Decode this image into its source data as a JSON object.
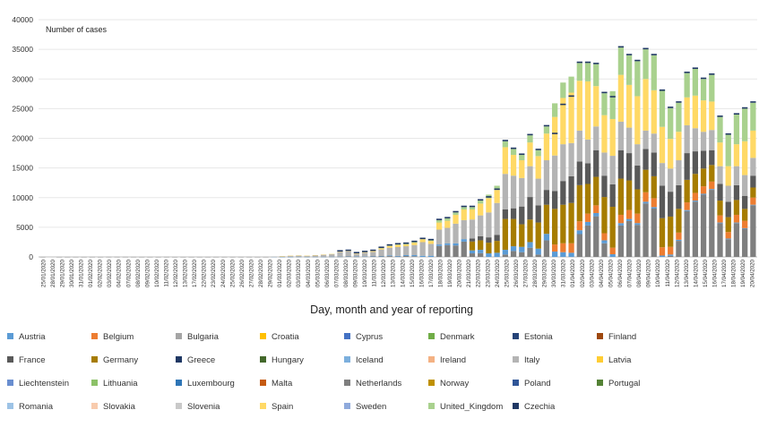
{
  "chart_data": {
    "type": "bar",
    "stacked": true,
    "ylabel": "Number of cases",
    "xlabel": "Day, month and year of reporting",
    "ylim": [
      0,
      40000
    ],
    "yticks": [
      0,
      5000,
      10000,
      15000,
      20000,
      25000,
      30000,
      35000,
      40000
    ],
    "legend_position": "bottom",
    "categories": [
      "25/01/2020",
      "26/01/2020",
      "27/01/2020",
      "28/01/2020",
      "29/01/2020",
      "30/01/2020",
      "31/01/2020",
      "01/02/2020",
      "02/02/2020",
      "03/02/2020",
      "04/02/2020",
      "05/02/2020",
      "06/02/2020",
      "07/02/2020",
      "08/02/2020",
      "09/02/2020",
      "10/02/2020",
      "11/02/2020",
      "12/02/2020",
      "13/02/2020",
      "14/02/2020",
      "15/02/2020",
      "16/02/2020",
      "17/02/2020",
      "18/02/2020",
      "19/02/2020",
      "20/02/2020",
      "21/02/2020",
      "22/02/2020",
      "23/02/2020",
      "24/02/2020",
      "25/02/2020",
      "26/02/2020",
      "27/02/2020",
      "28/02/2020",
      "29/02/2020",
      "01/03/2020",
      "02/03/2020",
      "03/03/2020",
      "04/03/2020",
      "05/03/2020",
      "06/03/2020",
      "07/03/2020",
      "08/03/2020",
      "09/03/2020",
      "10/03/2020",
      "11/03/2020",
      "12/03/2020",
      "13/03/2020",
      "14/03/2020",
      "15/03/2020",
      "16/03/2020",
      "17/03/2020",
      "18/03/2020",
      "19/03/2020",
      "20/03/2020",
      "21/03/2020",
      "22/03/2020",
      "23/03/2020",
      "24/03/2020",
      "25/03/2020",
      "26/03/2020",
      "27/03/2020",
      "28/03/2020",
      "29/03/2020",
      "30/03/2020",
      "31/03/2020",
      "01/04/2020",
      "02/04/2020",
      "03/04/2020",
      "04/04/2020",
      "05/04/2020",
      "06/04/2020",
      "07/04/2020",
      "08/04/2020",
      "09/04/2020",
      "10/04/2020",
      "11/04/2020",
      "12/04/2020",
      "13/04/2020",
      "14/04/2020",
      "15/04/2020",
      "16/04/2020",
      "17/04/2020",
      "18/04/2020",
      "19/04/2020",
      "20/04/2020"
    ],
    "tick_labels": [
      "25/01/2020",
      "28/01/2020",
      "29/01/2020",
      "30/01/2020",
      "31/01/2020",
      "01/02/2020",
      "02/02/2020",
      "03/02/2020",
      "04/02/2020",
      "07/02/2020",
      "08/02/2020",
      "09/02/2020",
      "10/02/2020",
      "11/02/2020",
      "12/02/2020",
      "13/02/2020",
      "17/02/2020",
      "22/02/2020",
      "23/02/2020",
      "24/02/2020",
      "25/02/2020",
      "26/02/2020",
      "27/02/2020",
      "28/02/2020",
      "29/02/2020",
      "01/03/2020",
      "02/03/2020",
      "03/03/2020",
      "04/03/2020",
      "05/03/2020",
      "06/03/2020",
      "07/03/2020",
      "08/03/2020",
      "09/03/2020",
      "10/03/2020",
      "11/03/2020",
      "12/03/2020",
      "13/03/2020",
      "14/03/2020",
      "15/03/2020",
      "16/03/2020",
      "17/03/2020",
      "18/03/2020",
      "19/03/2020",
      "20/03/2020",
      "21/03/2020",
      "22/03/2020",
      "23/03/2020",
      "24/03/2020",
      "25/03/2020",
      "26/03/2020",
      "27/03/2020",
      "28/03/2020",
      "29/03/2020",
      "30/03/2020",
      "31/03/2020",
      "01/04/2020",
      "02/04/2020",
      "03/04/2020",
      "04/04/2020",
      "05/04/2020",
      "06/04/2020",
      "07/04/2020",
      "08/04/2020",
      "09/04/2020",
      "10/04/2020",
      "11/04/2020",
      "12/04/2020",
      "13/04/2020",
      "14/04/2020",
      "15/04/2020",
      "16/04/2020",
      "17/04/2020",
      "18/04/2020",
      "19/04/2020",
      "20/04/2020"
    ],
    "totals": [
      5,
      0,
      4,
      1,
      4,
      2,
      6,
      4,
      10,
      12,
      8,
      5,
      2,
      4,
      4,
      8,
      3,
      2,
      3,
      3,
      2,
      5,
      6,
      7,
      6,
      8,
      4,
      2,
      20,
      120,
      200,
      250,
      200,
      300,
      400,
      500,
      900,
      1000,
      600,
      800,
      1000,
      1500,
      1900,
      2100,
      2200,
      2500,
      3000,
      2800,
      6200,
      6500,
      7500,
      8400,
      8400,
      9500,
      10000,
      11300,
      19500,
      18200,
      17200,
      20500,
      18000,
      22000,
      20700,
      25600,
      27000,
      32700,
      32700,
      32500,
      27600,
      26900,
      35300,
      34000,
      33000,
      35000,
      34000,
      28000,
      25100,
      26000,
      31000,
      31700,
      30000,
      30700,
      23600,
      20600,
      24000,
      25000,
      26000,
      24200,
      23800,
      21000
    ],
    "series": [
      {
        "name": "Austria",
        "color": "#5b9bd5",
        "values": [
          0,
          0,
          0,
          0,
          0,
          0,
          0,
          0,
          0,
          0,
          0,
          0,
          0,
          0,
          0,
          0,
          0,
          0,
          0,
          0,
          0,
          0,
          0,
          0,
          0,
          0,
          0,
          0,
          2,
          5,
          8,
          10,
          8,
          12,
          15,
          20,
          30,
          45,
          50,
          55,
          60,
          75,
          110,
          120,
          150,
          180,
          190,
          200,
          250,
          300,
          370,
          420,
          500,
          550,
          600,
          700,
          800,
          800,
          900,
          950,
          1000,
          1100,
          900,
          800,
          700,
          650,
          600,
          550,
          500,
          450,
          400,
          350,
          300,
          280,
          250,
          230,
          210,
          200,
          180,
          170,
          150,
          140,
          130,
          120,
          110,
          100,
          90
        ]
      },
      {
        "name": "Belgium",
        "color": "#ed7d31",
        "values": [
          0,
          0,
          0,
          0,
          0,
          0,
          0,
          0,
          0,
          0,
          0,
          0,
          0,
          0,
          0,
          0,
          0,
          0,
          0,
          0,
          0,
          0,
          0,
          0,
          0,
          0,
          0,
          0,
          0,
          0,
          0,
          0,
          0,
          0,
          0,
          0,
          0,
          0,
          0,
          0,
          0,
          0,
          0,
          0,
          0,
          0,
          0,
          0,
          0,
          0,
          0,
          0,
          0,
          0,
          0,
          0,
          0,
          0,
          0,
          0,
          0,
          0,
          1200,
          1500,
          1600,
          1500,
          1400,
          1300,
          1200,
          1100,
          1400,
          1500,
          1600,
          1600,
          1500,
          1400,
          1300,
          1200,
          1300,
          1300,
          1250,
          1250,
          1200,
          1100,
          1300,
          1250,
          1200
        ]
      },
      {
        "name": "Germany",
        "color": "#a67c00",
        "values": [
          0,
          0,
          0,
          0,
          0,
          0,
          0,
          0,
          0,
          0,
          0,
          0,
          0,
          0,
          0,
          0,
          0,
          0,
          0,
          0,
          0,
          0,
          0,
          0,
          0,
          0,
          0,
          0,
          0,
          0,
          0,
          0,
          0,
          0,
          0,
          0,
          0,
          0,
          0,
          0,
          0,
          0,
          0,
          0,
          0,
          0,
          0,
          0,
          0,
          0,
          0,
          0,
          1500,
          1600,
          1800,
          2000,
          5200,
          4600,
          3800,
          3800,
          4400,
          4900,
          6000,
          6500,
          6800,
          6100,
          5000,
          4800,
          6100,
          6900,
          6100,
          5000,
          4100,
          3800,
          3700,
          4900,
          5100,
          4000,
          3800,
          3200,
          3000,
          2800,
          2500,
          2500,
          2500,
          2000,
          1700
        ]
      },
      {
        "name": "France",
        "color": "#595959",
        "values": [
          0,
          0,
          0,
          0,
          0,
          0,
          0,
          0,
          0,
          0,
          0,
          0,
          0,
          0,
          0,
          0,
          0,
          0,
          0,
          0,
          0,
          0,
          0,
          0,
          0,
          0,
          0,
          0,
          0,
          0,
          0,
          0,
          0,
          0,
          0,
          0,
          0,
          0,
          0,
          0,
          0,
          0,
          0,
          0,
          0,
          0,
          0,
          0,
          0,
          0,
          0,
          0,
          500,
          700,
          900,
          1000,
          1600,
          1800,
          3000,
          3800,
          2900,
          2500,
          3000,
          4000,
          4500,
          4000,
          3500,
          4500,
          3600,
          3800,
          4800,
          4600,
          4000,
          3500,
          4000,
          5500,
          4200,
          4000,
          4500,
          3800,
          3000,
          2500,
          2800,
          2600,
          2500,
          2200,
          2000
        ]
      },
      {
        "name": "Italy",
        "color": "#b4b4b4",
        "values": [
          0,
          0,
          0,
          0,
          0,
          0,
          0,
          0,
          0,
          0,
          0,
          0,
          0,
          0,
          0,
          0,
          0,
          0,
          0,
          0,
          0,
          0,
          0,
          0,
          0,
          0,
          0,
          0,
          16,
          100,
          180,
          200,
          170,
          250,
          350,
          430,
          800,
          800,
          450,
          600,
          700,
          1100,
          1300,
          1500,
          1500,
          1700,
          2300,
          2000,
          2500,
          2600,
          3300,
          3200,
          3200,
          3500,
          4200,
          5400,
          6000,
          5500,
          4800,
          5200,
          4500,
          5000,
          6000,
          6200,
          5600,
          5200,
          4000,
          4000,
          3900,
          4800,
          4800,
          4300,
          3600,
          3100,
          3200,
          3800,
          3900,
          4200,
          4700,
          3900,
          3200,
          3400,
          3000,
          2700,
          3200,
          3500,
          3000
        ]
      },
      {
        "name": "Spain",
        "color": "#ffd966",
        "values": [
          0,
          0,
          0,
          0,
          0,
          0,
          0,
          0,
          0,
          0,
          0,
          0,
          0,
          0,
          0,
          0,
          0,
          0,
          0,
          0,
          0,
          0,
          0,
          0,
          0,
          0,
          0,
          0,
          0,
          5,
          10,
          15,
          10,
          20,
          25,
          30,
          50,
          70,
          80,
          100,
          150,
          200,
          300,
          350,
          300,
          400,
          500,
          500,
          1200,
          1200,
          1500,
          1800,
          1700,
          2000,
          2400,
          2200,
          4500,
          3500,
          3000,
          4000,
          3800,
          4500,
          6500,
          7800,
          8500,
          8400,
          9800,
          6800,
          6300,
          6200,
          7900,
          7200,
          8100,
          8700,
          7300,
          6100,
          5000,
          4800,
          4700,
          5500,
          5300,
          4800,
          4000,
          3300,
          3700,
          5700,
          4600
        ]
      },
      {
        "name": "United_Kingdom",
        "color": "#a9d18e",
        "values": [
          0,
          0,
          0,
          0,
          0,
          0,
          0,
          0,
          0,
          0,
          0,
          0,
          0,
          0,
          0,
          0,
          0,
          0,
          0,
          0,
          0,
          0,
          0,
          0,
          0,
          0,
          0,
          0,
          0,
          0,
          0,
          0,
          0,
          0,
          0,
          0,
          0,
          0,
          0,
          0,
          0,
          50,
          50,
          80,
          100,
          100,
          150,
          150,
          400,
          400,
          400,
          400,
          400,
          500,
          600,
          700,
          1000,
          1000,
          900,
          1200,
          1000,
          1200,
          2300,
          2600,
          2700,
          3000,
          3100,
          3700,
          3700,
          4700,
          4600,
          5000,
          5900,
          5000,
          5900,
          6200,
          5200,
          4900,
          4100,
          4500,
          3600,
          4500,
          4300,
          5300,
          5000,
          5500,
          4700
        ]
      }
    ],
    "legend": [
      {
        "name": "Austria",
        "color": "#5b9bd5"
      },
      {
        "name": "Belgium",
        "color": "#ed7d31"
      },
      {
        "name": "Bulgaria",
        "color": "#a5a5a5"
      },
      {
        "name": "Croatia",
        "color": "#ffc000"
      },
      {
        "name": "Cyprus",
        "color": "#4472c4"
      },
      {
        "name": "Denmark",
        "color": "#70ad47"
      },
      {
        "name": "Estonia",
        "color": "#264478"
      },
      {
        "name": "Finland",
        "color": "#9e480e"
      },
      {
        "name": "France",
        "color": "#595959"
      },
      {
        "name": "Germany",
        "color": "#a67c00"
      },
      {
        "name": "Greece",
        "color": "#1f3864"
      },
      {
        "name": "Hungary",
        "color": "#43682b"
      },
      {
        "name": "Iceland",
        "color": "#7cafdd"
      },
      {
        "name": "Ireland",
        "color": "#f4b183"
      },
      {
        "name": "Italy",
        "color": "#b4b4b4"
      },
      {
        "name": "Latvia",
        "color": "#ffcd33"
      },
      {
        "name": "Liechtenstein",
        "color": "#698ed0"
      },
      {
        "name": "Lithuania",
        "color": "#8cc168"
      },
      {
        "name": "Luxembourg",
        "color": "#2e75b6"
      },
      {
        "name": "Malta",
        "color": "#c55a11"
      },
      {
        "name": "Netherlands",
        "color": "#7f7f7f"
      },
      {
        "name": "Norway",
        "color": "#bf9000"
      },
      {
        "name": "Poland",
        "color": "#2f5597"
      },
      {
        "name": "Portugal",
        "color": "#548235"
      },
      {
        "name": "Romania",
        "color": "#9dc3e6"
      },
      {
        "name": "Slovakia",
        "color": "#f8cbad"
      },
      {
        "name": "Slovenia",
        "color": "#c9c9c9"
      },
      {
        "name": "Spain",
        "color": "#ffd966"
      },
      {
        "name": "Sweden",
        "color": "#8faadc"
      },
      {
        "name": "United_Kingdom",
        "color": "#a9d18e"
      },
      {
        "name": "Czechia",
        "color": "#203864"
      }
    ]
  }
}
